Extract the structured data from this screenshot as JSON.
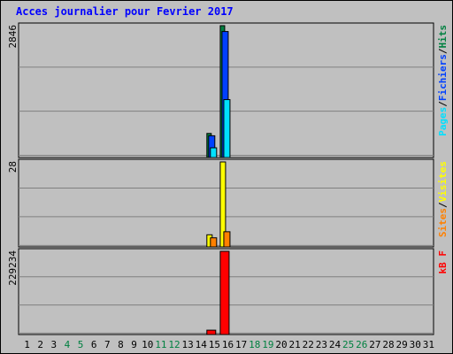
{
  "title": "Acces journalier pour Fevrier 2017",
  "chart_data": [
    {
      "type": "bar",
      "name": "hits-files-pages",
      "ymax_label": "2846",
      "ylim": [
        0,
        2846
      ],
      "legend": [
        "Pages",
        "/",
        "Fichiers",
        "/",
        "Hits"
      ],
      "legend_colors": [
        "#00e0ff",
        "#000000",
        "#0040ff",
        "#000000",
        "#008040"
      ],
      "series": [
        {
          "name": "Hits",
          "color": "#008040",
          "values": {
            "15": 520,
            "16": 2846
          }
        },
        {
          "name": "Fichiers",
          "color": "#0040ff",
          "values": {
            "15": 470,
            "16": 2720
          }
        },
        {
          "name": "Pages",
          "color": "#00e0ff",
          "values": {
            "15": 210,
            "16": 1250
          }
        }
      ]
    },
    {
      "type": "bar",
      "name": "visits-sites",
      "ymax_label": "28",
      "ylim": [
        0,
        28
      ],
      "legend": [
        "Sites",
        "/",
        "Visites"
      ],
      "legend_colors": [
        "#ff8000",
        "#000000",
        "#ffff00"
      ],
      "series": [
        {
          "name": "Visites",
          "color": "#ffff00",
          "values": {
            "15": 4,
            "16": 28
          }
        },
        {
          "name": "Sites",
          "color": "#ff8000",
          "values": {
            "15": 3,
            "16": 5
          }
        }
      ]
    },
    {
      "type": "bar",
      "name": "kbytes",
      "ymax_label": "229234",
      "ylim": [
        0,
        229234
      ],
      "legend": [
        "kB F"
      ],
      "legend_colors": [
        "#ff0000"
      ],
      "series": [
        {
          "name": "kB F",
          "color": "#ff0000",
          "values": {
            "15": 12000,
            "16": 229234
          }
        }
      ]
    }
  ],
  "days": [
    {
      "label": "1",
      "weekend": false
    },
    {
      "label": "2",
      "weekend": false
    },
    {
      "label": "3",
      "weekend": false
    },
    {
      "label": "4",
      "weekend": true
    },
    {
      "label": "5",
      "weekend": true
    },
    {
      "label": "6",
      "weekend": false
    },
    {
      "label": "7",
      "weekend": false
    },
    {
      "label": "8",
      "weekend": false
    },
    {
      "label": "9",
      "weekend": false
    },
    {
      "label": "10",
      "weekend": false
    },
    {
      "label": "11",
      "weekend": true
    },
    {
      "label": "12",
      "weekend": true
    },
    {
      "label": "13",
      "weekend": false
    },
    {
      "label": "14",
      "weekend": false
    },
    {
      "label": "15",
      "weekend": false
    },
    {
      "label": "16",
      "weekend": false
    },
    {
      "label": "17",
      "weekend": false
    },
    {
      "label": "18",
      "weekend": true
    },
    {
      "label": "19",
      "weekend": true
    },
    {
      "label": "20",
      "weekend": false
    },
    {
      "label": "21",
      "weekend": false
    },
    {
      "label": "22",
      "weekend": false
    },
    {
      "label": "23",
      "weekend": false
    },
    {
      "label": "24",
      "weekend": false
    },
    {
      "label": "25",
      "weekend": true
    },
    {
      "label": "26",
      "weekend": true
    },
    {
      "label": "27",
      "weekend": false
    },
    {
      "label": "28",
      "weekend": false
    },
    {
      "label": "29",
      "weekend": false
    },
    {
      "label": "30",
      "weekend": false
    },
    {
      "label": "31",
      "weekend": false
    }
  ],
  "colors": {
    "weekday": "#000000",
    "weekend": "#008040",
    "grid": "#808080",
    "panel": "#c0c0c0"
  }
}
